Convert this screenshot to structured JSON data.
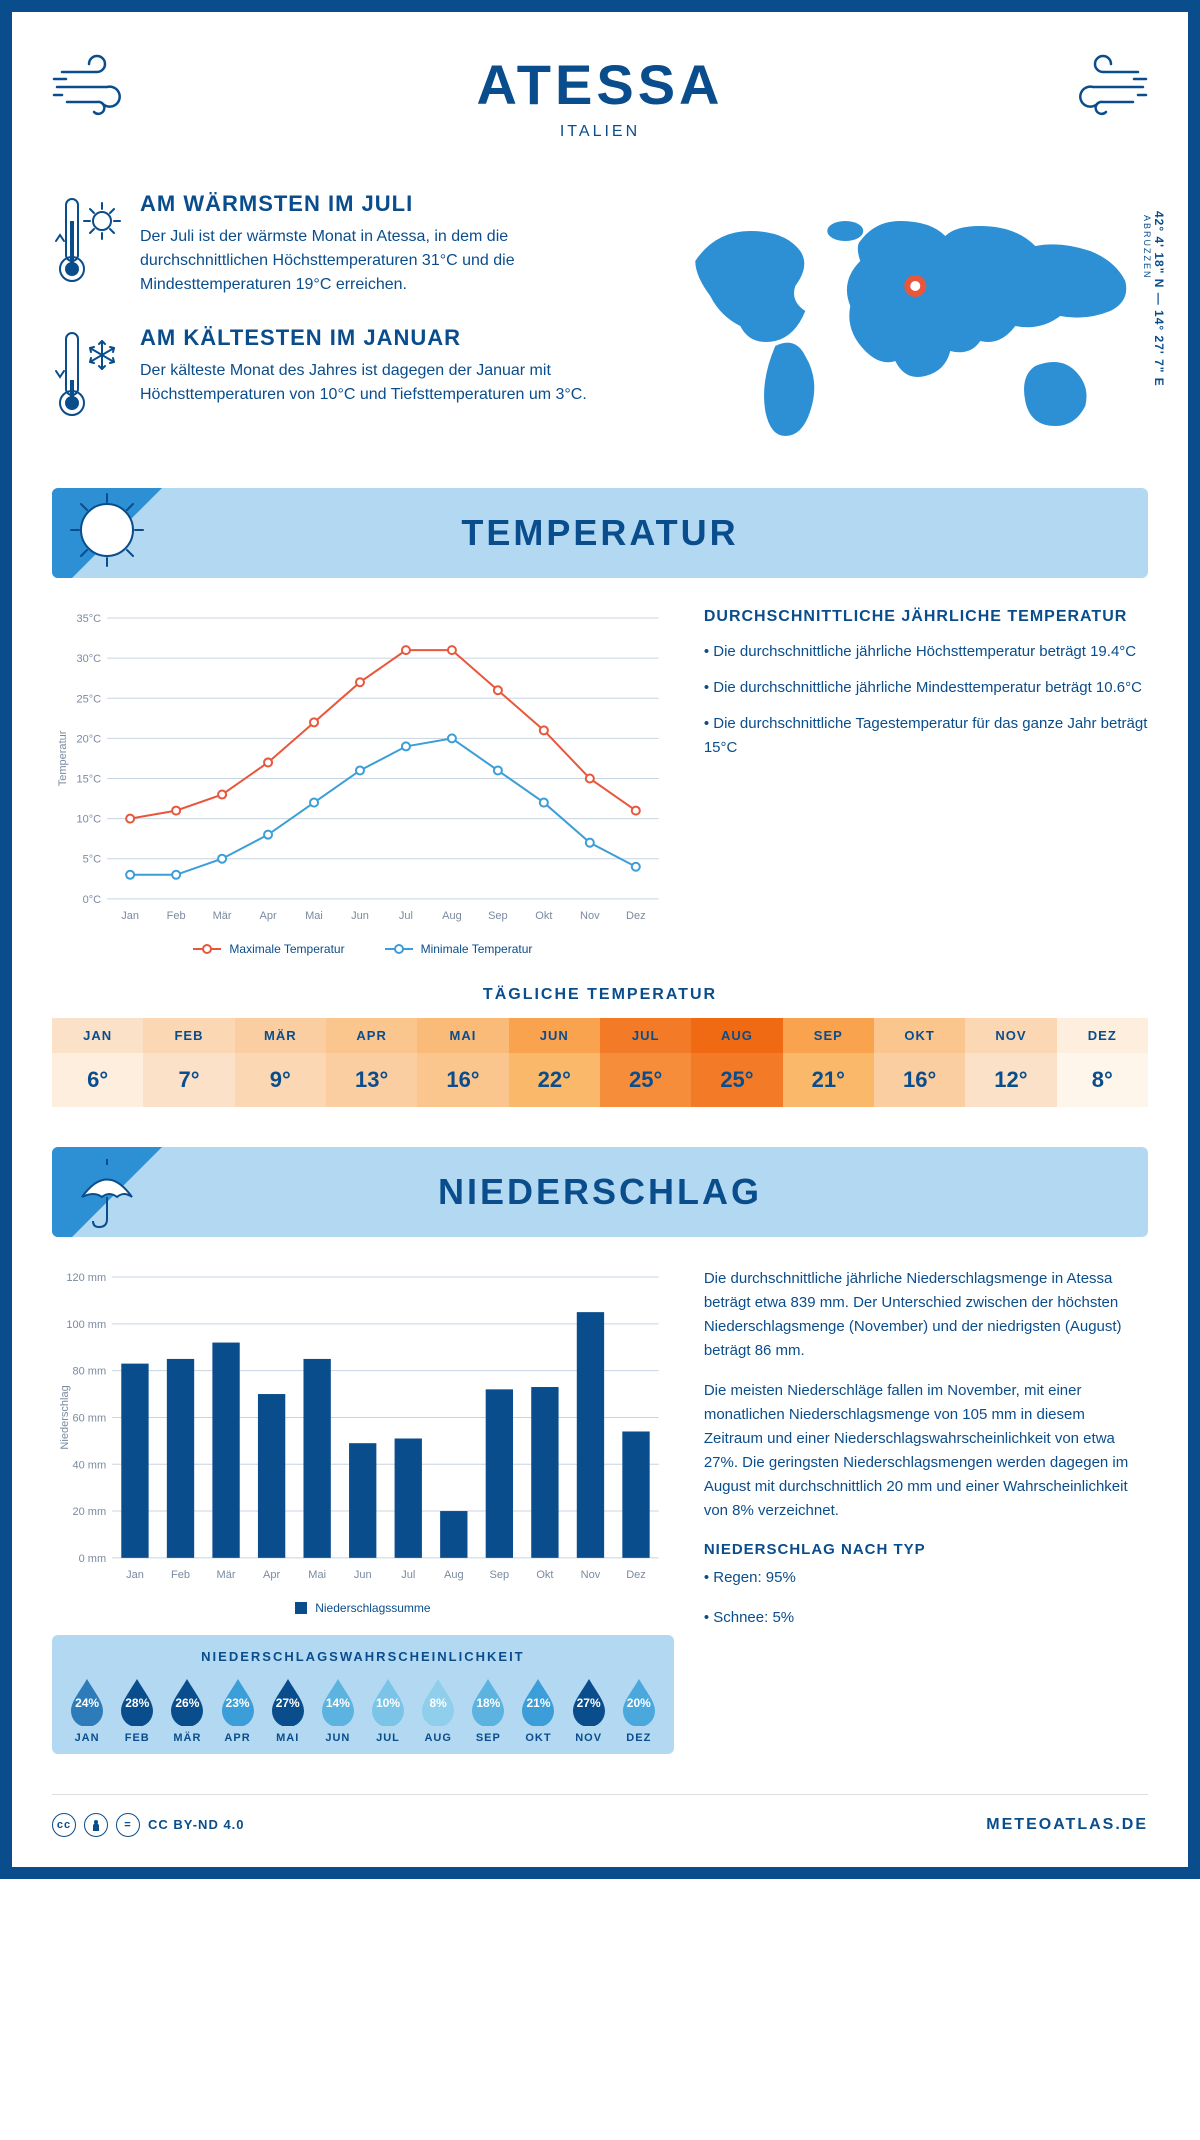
{
  "header": {
    "title": "ATESSA",
    "subtitle": "ITALIEN"
  },
  "location": {
    "coords": "42° 4' 18\" N — 14° 27' 7\" E",
    "region": "ABRUZZEN"
  },
  "info_warm": {
    "title": "AM WÄRMSTEN IM JULI",
    "body": "Der Juli ist der wärmste Monat in Atessa, in dem die durchschnittlichen Höchsttemperaturen 31°C und die Mindesttemperaturen 19°C erreichen."
  },
  "info_cold": {
    "title": "AM KÄLTESTEN IM JANUAR",
    "body": "Der kälteste Monat des Jahres ist dagegen der Januar mit Höchsttemperaturen von 10°C und Tiefsttemperaturen um 3°C."
  },
  "temperature": {
    "heading": "TEMPERATUR",
    "summary_heading": "DURCHSCHNITTLICHE JÄHRLICHE TEMPERATUR",
    "bullets": [
      "• Die durchschnittliche jährliche Höchsttemperatur beträgt 19.4°C",
      "• Die durchschnittliche jährliche Mindesttemperatur beträgt 10.6°C",
      "• Die durchschnittliche Tagestemperatur für das ganze Jahr beträgt 15°C"
    ],
    "chart": {
      "type": "line",
      "months": [
        "Jan",
        "Feb",
        "Mär",
        "Apr",
        "Mai",
        "Jun",
        "Jul",
        "Aug",
        "Sep",
        "Okt",
        "Nov",
        "Dez"
      ],
      "max_series": {
        "label": "Maximale Temperatur",
        "color": "#e8573c",
        "values": [
          10,
          11,
          13,
          17,
          22,
          27,
          31,
          31,
          26,
          21,
          15,
          11
        ]
      },
      "min_series": {
        "label": "Minimale Temperatur",
        "color": "#3b9ed8",
        "values": [
          3,
          3,
          5,
          8,
          12,
          16,
          19,
          20,
          16,
          12,
          7,
          4
        ]
      },
      "y_axis": {
        "label": "Temperatur",
        "min": 0,
        "max": 35,
        "step": 5,
        "ticks": [
          "0°C",
          "5°C",
          "10°C",
          "15°C",
          "20°C",
          "25°C",
          "30°C",
          "35°C"
        ]
      },
      "line_width": 2,
      "marker_size": 4,
      "grid_color": "#c8d4e0",
      "axis_color": "#7a8aa0",
      "bg": "#ffffff",
      "font_size": 11
    },
    "daily_temp": {
      "heading": "TÄGLICHE TEMPERATUR",
      "months": [
        "JAN",
        "FEB",
        "MÄR",
        "APR",
        "MAI",
        "JUN",
        "JUL",
        "AUG",
        "SEP",
        "OKT",
        "NOV",
        "DEZ"
      ],
      "values": [
        "6°",
        "7°",
        "9°",
        "13°",
        "16°",
        "22°",
        "25°",
        "25°",
        "21°",
        "16°",
        "12°",
        "8°"
      ],
      "head_colors": [
        "#fae1c8",
        "#fbd7b4",
        "#fbcea1",
        "#fbc58e",
        "#faba78",
        "#f9a34e",
        "#f37a26",
        "#f06a14",
        "#f9a34e",
        "#fbc58e",
        "#fbd7b4",
        "#fdeedd"
      ],
      "val_colors": [
        "#fdeedd",
        "#fae1c8",
        "#fbd7b4",
        "#fbcea1",
        "#fbc58e",
        "#f9b86a",
        "#f58d3a",
        "#f37a26",
        "#f9b86a",
        "#fbcea1",
        "#fae1c8",
        "#fef5eb"
      ]
    }
  },
  "precip": {
    "heading": "NIEDERSCHLAG",
    "body1": "Die durchschnittliche jährliche Niederschlagsmenge in Atessa beträgt etwa 839 mm. Der Unterschied zwischen der höchsten Niederschlagsmenge (November) und der niedrigsten (August) beträgt 86 mm.",
    "body2": "Die meisten Niederschläge fallen im November, mit einer monatlichen Niederschlagsmenge von 105 mm in diesem Zeitraum und einer Niederschlagswahrscheinlichkeit von etwa 27%. Die geringsten Niederschlagsmengen werden dagegen im August mit durchschnittlich 20 mm und einer Wahrscheinlichkeit von 8% verzeichnet.",
    "type_heading": "NIEDERSCHLAG NACH TYP",
    "type_bullets": [
      "• Regen: 95%",
      "• Schnee: 5%"
    ],
    "chart": {
      "type": "bar",
      "months": [
        "Jan",
        "Feb",
        "Mär",
        "Apr",
        "Mai",
        "Jun",
        "Jul",
        "Aug",
        "Sep",
        "Okt",
        "Nov",
        "Dez"
      ],
      "values": [
        83,
        85,
        92,
        70,
        85,
        49,
        51,
        20,
        72,
        73,
        105,
        54
      ],
      "legend_label": "Niederschlagssumme",
      "bar_color": "#0a4d8c",
      "bar_width": 0.6,
      "y_axis": {
        "label": "Niederschlag",
        "min": 0,
        "max": 120,
        "step": 20,
        "ticks": [
          "0 mm",
          "20 mm",
          "40 mm",
          "60 mm",
          "80 mm",
          "100 mm",
          "120 mm"
        ]
      },
      "grid_color": "#c8d4e0",
      "axis_color": "#7a8aa0",
      "bg": "#ffffff",
      "font_size": 11
    },
    "prob": {
      "heading": "NIEDERSCHLAGSWAHRSCHEINLICHKEIT",
      "months": [
        "JAN",
        "FEB",
        "MÄR",
        "APR",
        "MAI",
        "JUN",
        "JUL",
        "AUG",
        "SEP",
        "OKT",
        "NOV",
        "DEZ"
      ],
      "values": [
        "24%",
        "28%",
        "26%",
        "23%",
        "27%",
        "14%",
        "10%",
        "8%",
        "18%",
        "21%",
        "27%",
        "20%"
      ],
      "colors": [
        "#2d7bb8",
        "#0a4d8c",
        "#0a4d8c",
        "#3b9ed8",
        "#0a4d8c",
        "#5cb3e0",
        "#7bc4e8",
        "#8fcfeb",
        "#5cb3e0",
        "#3b9ed8",
        "#0a4d8c",
        "#4aa8dc"
      ]
    }
  },
  "footer": {
    "license": "CC BY-ND 4.0",
    "site": "METEOATLAS.DE"
  }
}
